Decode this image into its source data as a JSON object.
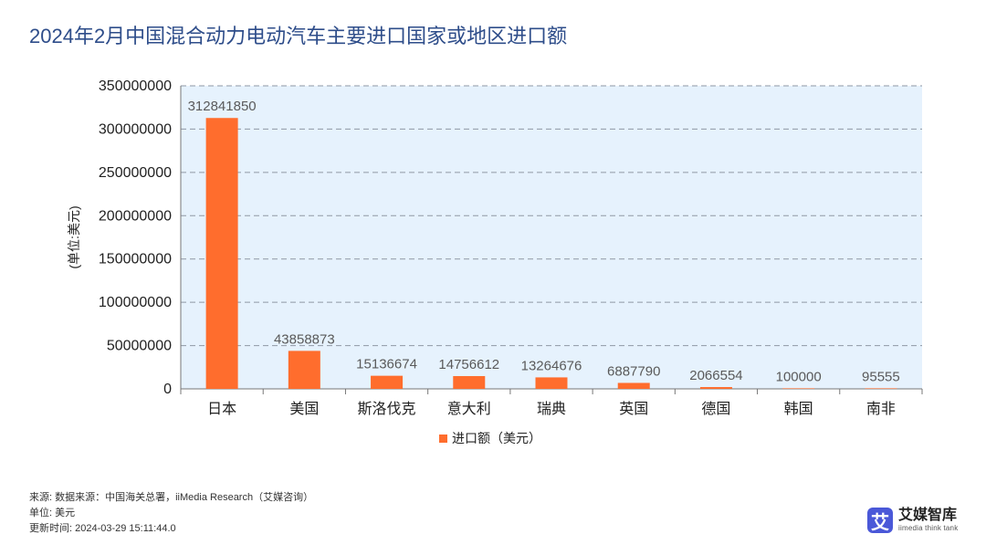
{
  "title": "2024年2月中国混合动力电动汽车主要进口国家或地区进口额",
  "chart_data": {
    "type": "bar",
    "title": "2024年2月中国混合动力电动汽车主要进口国家或地区进口额",
    "ylabel": "(单位:美元)",
    "xlabel": "",
    "ylim": [
      0,
      350000000
    ],
    "yticks": [
      "0",
      "50000000",
      "100000000",
      "150000000",
      "200000000",
      "250000000",
      "300000000",
      "350000000"
    ],
    "categories": [
      "日本",
      "美国",
      "斯洛伐克",
      "意大利",
      "瑞典",
      "英国",
      "德国",
      "韩国",
      "南非"
    ],
    "series": [
      {
        "name": "进口额（美元）",
        "values": [
          312841850,
          43858873,
          15136674,
          14756612,
          13264676,
          6887790,
          2066554,
          100000,
          95555
        ],
        "labels": [
          "312841850",
          "43858873",
          "15136674",
          "14756612",
          "13264676",
          "6887790",
          "2066554",
          "100000",
          "95555"
        ]
      }
    ],
    "grid": true,
    "legend": "bottom-center",
    "colors": {
      "bar": "#ff6d2d",
      "plot_bg": "#e6f2fd",
      "grid": "#8f98a4"
    }
  },
  "footer": {
    "source": "来源: 数据来源：中国海关总署，iiMedia Research（艾媒咨询）",
    "unit": "单位: 美元",
    "updated": "更新时间: 2024-03-29 15:11:44.0"
  },
  "brand": {
    "mark": "艾",
    "name": "艾媒智库",
    "sub": "iimedia think tank"
  }
}
